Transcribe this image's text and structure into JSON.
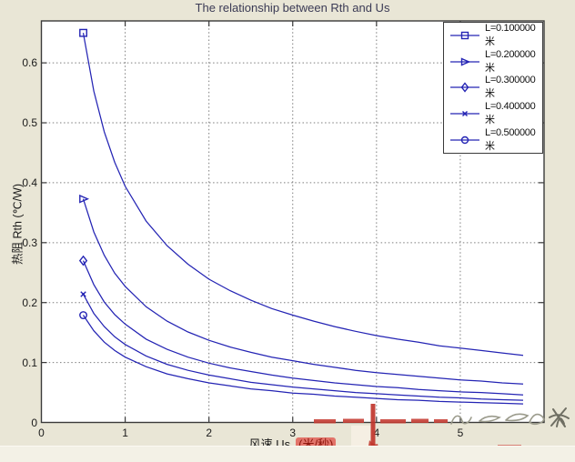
{
  "window": {
    "background_color": "#e9e6d6",
    "bottom_strip_color": "#f3f1e6"
  },
  "chart": {
    "title": "The relationship between Rth and Us",
    "title_color": "#3b3b55",
    "ylabel": "热阻  Rth (℃/W)",
    "xlabel_main": "风速  Us",
    "xlabel_unit": "(米/秒)",
    "unit_highlight": {
      "bg": "#e2746a",
      "text_color": "#8c160c"
    },
    "curve_color": "#2424b4",
    "grid_color": "#7d7d7d"
  },
  "chart_data": {
    "type": "line",
    "title": "The relationship between Rth and Us",
    "xlabel": "风速 Us (米/秒)",
    "ylabel": "热阻 Rth (℃/W)",
    "xlim": [
      0,
      6
    ],
    "ylim": [
      0,
      0.67
    ],
    "xticks": [
      "0",
      "1",
      "2",
      "3",
      "4",
      "5"
    ],
    "yticks": [
      "0",
      "0.1",
      "0.2",
      "0.3",
      "0.4",
      "0.5",
      "0.6"
    ],
    "grid": true,
    "legend_position": "northeast",
    "x": [
      0.5,
      0.625,
      0.75,
      0.875,
      1,
      1.25,
      1.5,
      1.75,
      2,
      2.25,
      2.5,
      2.75,
      3,
      3.25,
      3.5,
      3.75,
      4,
      4.25,
      4.5,
      4.75,
      5,
      5.25,
      5.5,
      5.75
    ],
    "series": [
      {
        "name": "L=0.100000米",
        "marker": "square",
        "values": [
          0.65,
          0.553,
          0.485,
          0.434,
          0.394,
          0.336,
          0.295,
          0.264,
          0.239,
          0.22,
          0.204,
          0.19,
          0.179,
          0.169,
          0.16,
          0.152,
          0.145,
          0.139,
          0.134,
          0.128,
          0.124,
          0.12,
          0.116,
          0.112
        ]
      },
      {
        "name": "L=0.200000米",
        "marker": "triangle-right",
        "values": [
          0.373,
          0.318,
          0.279,
          0.249,
          0.227,
          0.193,
          0.169,
          0.151,
          0.137,
          0.126,
          0.117,
          0.109,
          0.103,
          0.097,
          0.092,
          0.087,
          0.083,
          0.08,
          0.077,
          0.074,
          0.071,
          0.069,
          0.066,
          0.064
        ]
      },
      {
        "name": "L=0.300000米",
        "marker": "diamond",
        "values": [
          0.27,
          0.23,
          0.201,
          0.18,
          0.164,
          0.139,
          0.122,
          0.109,
          0.099,
          0.091,
          0.085,
          0.079,
          0.074,
          0.07,
          0.066,
          0.063,
          0.06,
          0.058,
          0.055,
          0.053,
          0.051,
          0.05,
          0.048,
          0.046
        ]
      },
      {
        "name": "L=0.400000米",
        "marker": "x-point",
        "values": [
          0.214,
          0.182,
          0.16,
          0.143,
          0.13,
          0.111,
          0.097,
          0.087,
          0.079,
          0.073,
          0.067,
          0.063,
          0.059,
          0.056,
          0.053,
          0.05,
          0.048,
          0.046,
          0.044,
          0.042,
          0.041,
          0.039,
          0.038,
          0.037
        ]
      },
      {
        "name": "L=0.500000米",
        "marker": "circle",
        "values": [
          0.179,
          0.153,
          0.134,
          0.12,
          0.109,
          0.093,
          0.081,
          0.073,
          0.066,
          0.061,
          0.056,
          0.053,
          0.049,
          0.047,
          0.044,
          0.042,
          0.04,
          0.038,
          0.037,
          0.035,
          0.034,
          0.033,
          0.032,
          0.031
        ]
      }
    ]
  }
}
